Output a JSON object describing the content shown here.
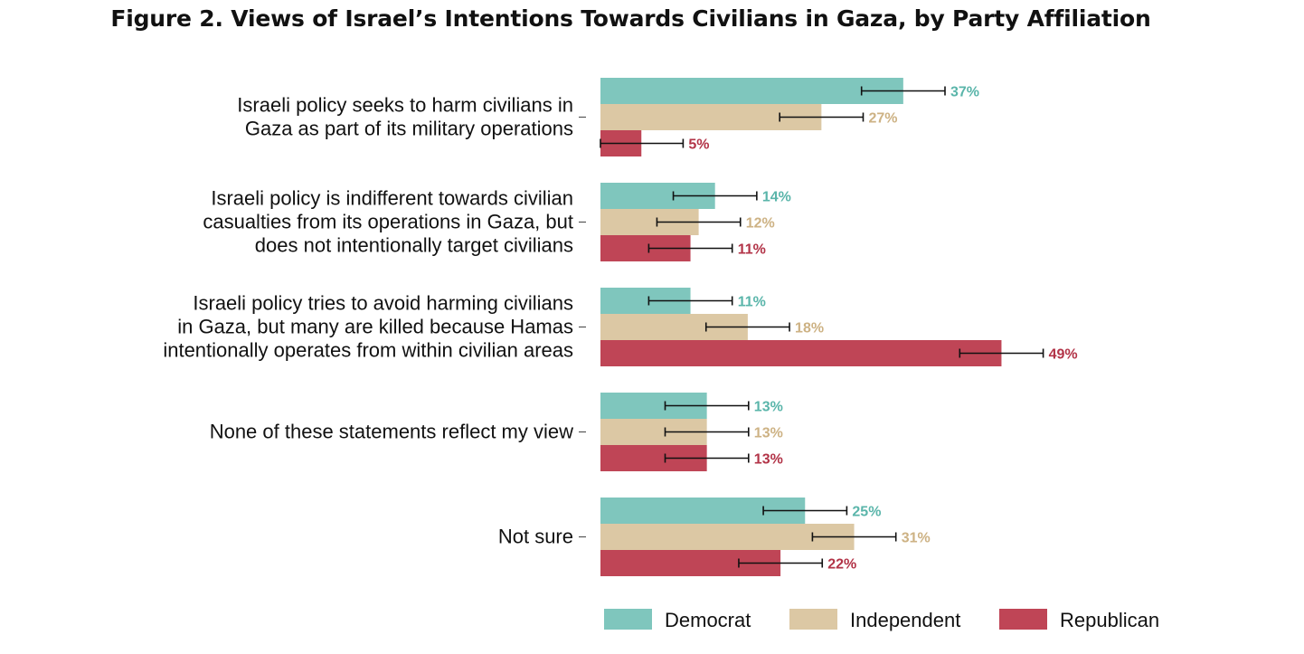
{
  "chart_data": {
    "type": "bar",
    "orientation": "horizontal",
    "title": "Figure 2. Views of Israel’s Intentions Towards Civilians in Gaza, by Party Affiliation",
    "categories": [
      [
        "Israeli policy seeks to harm civilians in",
        "Gaza as part of its military operations"
      ],
      [
        "Israeli policy is indifferent towards civilian",
        "casualties from its operations in Gaza, but",
        "does not intentionally target civilians"
      ],
      [
        "Israeli policy tries to avoid harming civilians",
        "in Gaza, but many are killed because Hamas",
        "intentionally operates from within civilian areas"
      ],
      [
        "None of these statements reflect my view"
      ],
      [
        "Not sure"
      ]
    ],
    "series": [
      {
        "name": "Democrat",
        "color": "#7fc6bd",
        "label_color": "#5ab5aa",
        "values": [
          37,
          14,
          11,
          13,
          25
        ],
        "labels": [
          "37%",
          "14%",
          "11%",
          "13%",
          "25%"
        ]
      },
      {
        "name": "Independent",
        "color": "#dcc8a4",
        "label_color": "#cdb284",
        "values": [
          27,
          12,
          18,
          13,
          31
        ],
        "labels": [
          "27%",
          "12%",
          "18%",
          "13%",
          "31%"
        ]
      },
      {
        "name": "Republican",
        "color": "#bf4556",
        "label_color": "#b23347",
        "values": [
          5,
          11,
          49,
          13,
          22
        ],
        "labels": [
          "5%",
          "11%",
          "49%",
          "13%",
          "22%"
        ]
      }
    ],
    "error_bars": true,
    "xlim": [
      0,
      50
    ],
    "xlabel": "",
    "ylabel": "",
    "grid": false,
    "legend": "bottom"
  }
}
